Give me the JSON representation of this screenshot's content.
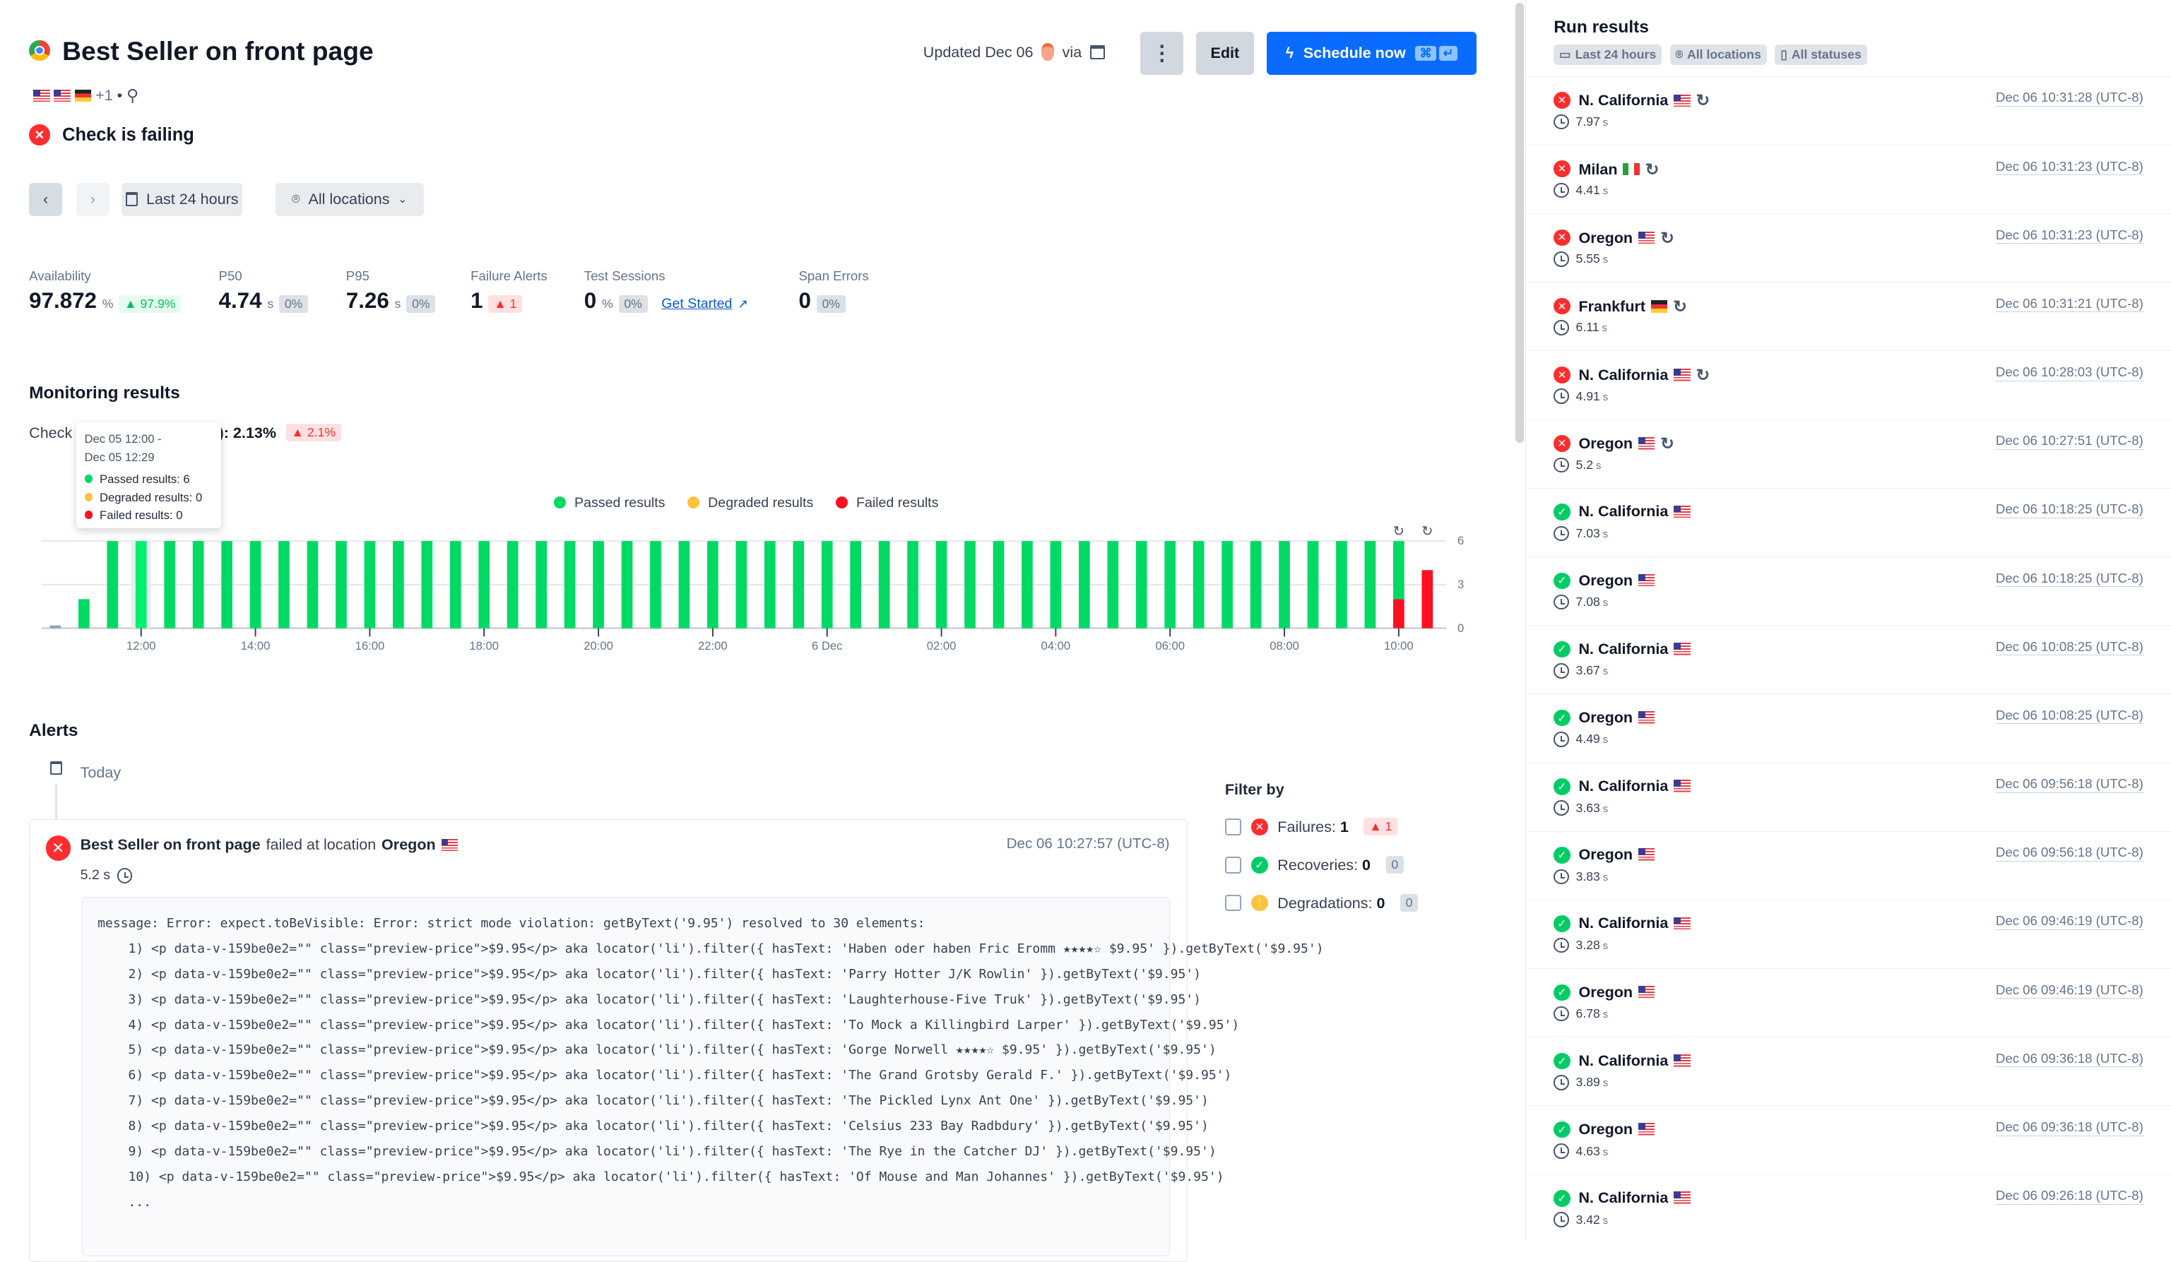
{
  "header": {
    "title": "Best Seller on front page",
    "locations_more": "+1",
    "separator": "•",
    "status": "Check is failing",
    "updated": "Updated Dec 06",
    "via": "via",
    "edit": "Edit",
    "schedule": "Schedule now",
    "kbd_cmd": "⌘",
    "kbd_enter": "↵"
  },
  "filters": {
    "range": "Last 24 hours",
    "locations": "All locations"
  },
  "stats": [
    {
      "label": "Availability",
      "value": "97.872",
      "unit": "%",
      "badge": "▲ 97.9%",
      "badge_kind": "green"
    },
    {
      "label": "P50",
      "value": "4.74",
      "unit": "s",
      "badge": "0%",
      "badge_kind": "gray"
    },
    {
      "label": "P95",
      "value": "7.26",
      "unit": "s",
      "badge": "0%",
      "badge_kind": "gray"
    },
    {
      "label": "Failure Alerts",
      "value": "1",
      "unit": "",
      "badge": "▲ 1",
      "badge_kind": "red"
    },
    {
      "label": "Test Sessions",
      "value": "0",
      "unit": "%",
      "badge": "0%",
      "badge_kind": "gray",
      "link": "Get Started"
    },
    {
      "label": "Span Errors",
      "value": "0",
      "unit": "",
      "badge": "0%",
      "badge_kind": "gray"
    }
  ],
  "monitoring": {
    "title": "Monitoring results",
    "check_label": "Check",
    "check_suffix": "): 2.13%",
    "check_badge": "▲ 2.1%",
    "tooltip": {
      "range_start": "Dec 05 12:00 -",
      "range_end": "Dec 05 12:29",
      "passed": "Passed results: 6",
      "degraded": "Degraded results: 0",
      "failed": "Failed results: 0"
    }
  },
  "chart_data": {
    "type": "bar",
    "stacked": true,
    "legend": [
      "Passed results",
      "Degraded results",
      "Failed results"
    ],
    "legend_placement": "top-center",
    "colors": {
      "passed": "#00d964",
      "degraded": "#ffc23d",
      "failed": "#ff0f1f"
    },
    "x": [
      "Dec 05 10:30",
      "11:00",
      "11:30",
      "12:00",
      "12:30",
      "13:00",
      "13:30",
      "14:00",
      "14:30",
      "15:00",
      "15:30",
      "16:00",
      "16:30",
      "17:00",
      "17:30",
      "18:00",
      "18:30",
      "19:00",
      "19:30",
      "20:00",
      "20:30",
      "21:00",
      "21:30",
      "22:00",
      "22:30",
      "23:00",
      "23:30",
      "Dec 06 00:00",
      "00:30",
      "01:00",
      "01:30",
      "02:00",
      "02:30",
      "03:00",
      "03:30",
      "04:00",
      "04:30",
      "05:00",
      "05:30",
      "06:00",
      "06:30",
      "07:00",
      "07:30",
      "08:00",
      "08:30",
      "09:00",
      "09:30",
      "10:00",
      "10:30"
    ],
    "series": [
      {
        "name": "Passed results",
        "values": [
          0,
          2,
          6,
          6,
          6,
          6,
          6,
          6,
          6,
          6,
          6,
          6,
          6,
          6,
          6,
          6,
          6,
          6,
          6,
          6,
          6,
          6,
          6,
          6,
          6,
          6,
          6,
          6,
          6,
          6,
          6,
          6,
          6,
          6,
          6,
          6,
          6,
          6,
          6,
          6,
          6,
          6,
          6,
          6,
          6,
          6,
          6,
          4,
          0
        ]
      },
      {
        "name": "Degraded results",
        "values": [
          0,
          0,
          0,
          0,
          0,
          0,
          0,
          0,
          0,
          0,
          0,
          0,
          0,
          0,
          0,
          0,
          0,
          0,
          0,
          0,
          0,
          0,
          0,
          0,
          0,
          0,
          0,
          0,
          0,
          0,
          0,
          0,
          0,
          0,
          0,
          0,
          0,
          0,
          0,
          0,
          0,
          0,
          0,
          0,
          0,
          0,
          0,
          0,
          0
        ]
      },
      {
        "name": "Failed results",
        "values": [
          0,
          0,
          0,
          0,
          0,
          0,
          0,
          0,
          0,
          0,
          0,
          0,
          0,
          0,
          0,
          0,
          0,
          0,
          0,
          0,
          0,
          0,
          0,
          0,
          0,
          0,
          0,
          0,
          0,
          0,
          0,
          0,
          0,
          0,
          0,
          0,
          0,
          0,
          0,
          0,
          0,
          0,
          0,
          0,
          0,
          0,
          0,
          2,
          4
        ]
      }
    ],
    "retried_buckets": [
      "10:00",
      "10:30"
    ],
    "highlighted": "12:00",
    "xticks": [
      "12:00",
      "14:00",
      "16:00",
      "18:00",
      "20:00",
      "22:00",
      "6 Dec",
      "02:00",
      "04:00",
      "06:00",
      "08:00",
      "10:00"
    ],
    "yticks": [
      "6",
      "3",
      "0"
    ],
    "ylim": [
      0,
      6
    ],
    "grid": true
  },
  "alerts": {
    "title": "Alerts",
    "group": "Today",
    "item": {
      "check": "Best Seller on front page",
      "middle": "failed at location",
      "location": "Oregon",
      "time": "Dec 06 10:27:57 (UTC-8)",
      "duration": "5.2 s",
      "code": [
        "message: Error: expect.toBeVisible: Error: strict mode violation: getByText('9.95') resolved to 30 elements:",
        "    1) <p data-v-159be0e2=\"\" class=\"preview-price\">$9.95</p> aka locator('li').filter({ hasText: 'Haben oder haben Fric Eromm ★★★★☆ $9.95' }).getByText('$9.95')",
        "    2) <p data-v-159be0e2=\"\" class=\"preview-price\">$9.95</p> aka locator('li').filter({ hasText: 'Parry Hotter J/K Rowlin' }).getByText('$9.95')",
        "    3) <p data-v-159be0e2=\"\" class=\"preview-price\">$9.95</p> aka locator('li').filter({ hasText: 'Laughterhouse-Five Truk' }).getByText('$9.95')",
        "    4) <p data-v-159be0e2=\"\" class=\"preview-price\">$9.95</p> aka locator('li').filter({ hasText: 'To Mock a Killingbird Larper' }).getByText('$9.95')",
        "    5) <p data-v-159be0e2=\"\" class=\"preview-price\">$9.95</p> aka locator('li').filter({ hasText: 'Gorge Norwell ★★★★☆ $9.95' }).getByText('$9.95')",
        "    6) <p data-v-159be0e2=\"\" class=\"preview-price\">$9.95</p> aka locator('li').filter({ hasText: 'The Grand Grotsby Gerald F.' }).getByText('$9.95')",
        "    7) <p data-v-159be0e2=\"\" class=\"preview-price\">$9.95</p> aka locator('li').filter({ hasText: 'The Pickled Lynx Ant One' }).getByText('$9.95')",
        "    8) <p data-v-159be0e2=\"\" class=\"preview-price\">$9.95</p> aka locator('li').filter({ hasText: 'Celsius 233 Bay Radbdury' }).getByText('$9.95')",
        "    9) <p data-v-159be0e2=\"\" class=\"preview-price\">$9.95</p> aka locator('li').filter({ hasText: 'The Rye in the Catcher DJ' }).getByText('$9.95')",
        "    10) <p data-v-159be0e2=\"\" class=\"preview-price\">$9.95</p> aka locator('li').filter({ hasText: 'Of Mouse and Man Johannes' }).getByText('$9.95')",
        "    ..."
      ]
    },
    "filter": {
      "title": "Filter by",
      "items": [
        {
          "label": "Failures: ",
          "count": "1",
          "badge": "▲ 1",
          "kind": "fail"
        },
        {
          "label": "Recoveries: ",
          "count": "0",
          "badge": "0",
          "kind": "ok"
        },
        {
          "label": "Degradations: ",
          "count": "0",
          "badge": "0",
          "kind": "warn"
        }
      ]
    }
  },
  "run_results": {
    "title": "Run results",
    "chips": [
      "Last 24 hours",
      "All locations",
      "All statuses"
    ],
    "rows": [
      {
        "status": "failed",
        "location": "N. California",
        "flag": "us",
        "retry": true,
        "duration": "7.97",
        "unit": "s",
        "time": "Dec 06 10:31:28 (UTC-8)"
      },
      {
        "status": "failed",
        "location": "Milan",
        "flag": "it",
        "retry": true,
        "duration": "4.41",
        "unit": "s",
        "time": "Dec 06 10:31:23 (UTC-8)"
      },
      {
        "status": "failed",
        "location": "Oregon",
        "flag": "us",
        "retry": true,
        "duration": "5.55",
        "unit": "s",
        "time": "Dec 06 10:31:23 (UTC-8)"
      },
      {
        "status": "failed",
        "location": "Frankfurt",
        "flag": "de",
        "retry": true,
        "duration": "6.11",
        "unit": "s",
        "time": "Dec 06 10:31:21 (UTC-8)"
      },
      {
        "status": "failed",
        "location": "N. California",
        "flag": "us",
        "retry": true,
        "duration": "4.91",
        "unit": "s",
        "time": "Dec 06 10:28:03 (UTC-8)"
      },
      {
        "status": "failed",
        "location": "Oregon",
        "flag": "us",
        "retry": true,
        "duration": "5.2",
        "unit": "s",
        "time": "Dec 06 10:27:51 (UTC-8)"
      },
      {
        "status": "passed",
        "location": "N. California",
        "flag": "us",
        "retry": false,
        "duration": "7.03",
        "unit": "s",
        "time": "Dec 06 10:18:25 (UTC-8)"
      },
      {
        "status": "passed",
        "location": "Oregon",
        "flag": "us",
        "retry": false,
        "duration": "7.08",
        "unit": "s",
        "time": "Dec 06 10:18:25 (UTC-8)"
      },
      {
        "status": "passed",
        "location": "N. California",
        "flag": "us",
        "retry": false,
        "duration": "3.67",
        "unit": "s",
        "time": "Dec 06 10:08:25 (UTC-8)"
      },
      {
        "status": "passed",
        "location": "Oregon",
        "flag": "us",
        "retry": false,
        "duration": "4.49",
        "unit": "s",
        "time": "Dec 06 10:08:25 (UTC-8)"
      },
      {
        "status": "passed",
        "location": "N. California",
        "flag": "us",
        "retry": false,
        "duration": "3.63",
        "unit": "s",
        "time": "Dec 06 09:56:18 (UTC-8)"
      },
      {
        "status": "passed",
        "location": "Oregon",
        "flag": "us",
        "retry": false,
        "duration": "3.83",
        "unit": "s",
        "time": "Dec 06 09:56:18 (UTC-8)"
      },
      {
        "status": "passed",
        "location": "N. California",
        "flag": "us",
        "retry": false,
        "duration": "3.28",
        "unit": "s",
        "time": "Dec 06 09:46:19 (UTC-8)"
      },
      {
        "status": "passed",
        "location": "Oregon",
        "flag": "us",
        "retry": false,
        "duration": "6.78",
        "unit": "s",
        "time": "Dec 06 09:46:19 (UTC-8)"
      },
      {
        "status": "passed",
        "location": "N. California",
        "flag": "us",
        "retry": false,
        "duration": "3.89",
        "unit": "s",
        "time": "Dec 06 09:36:18 (UTC-8)"
      },
      {
        "status": "passed",
        "location": "Oregon",
        "flag": "us",
        "retry": false,
        "duration": "4.63",
        "unit": "s",
        "time": "Dec 06 09:36:18 (UTC-8)"
      },
      {
        "status": "passed",
        "location": "N. California",
        "flag": "us",
        "retry": false,
        "duration": "3.42",
        "unit": "s",
        "time": "Dec 06 09:26:18 (UTC-8)"
      }
    ]
  }
}
